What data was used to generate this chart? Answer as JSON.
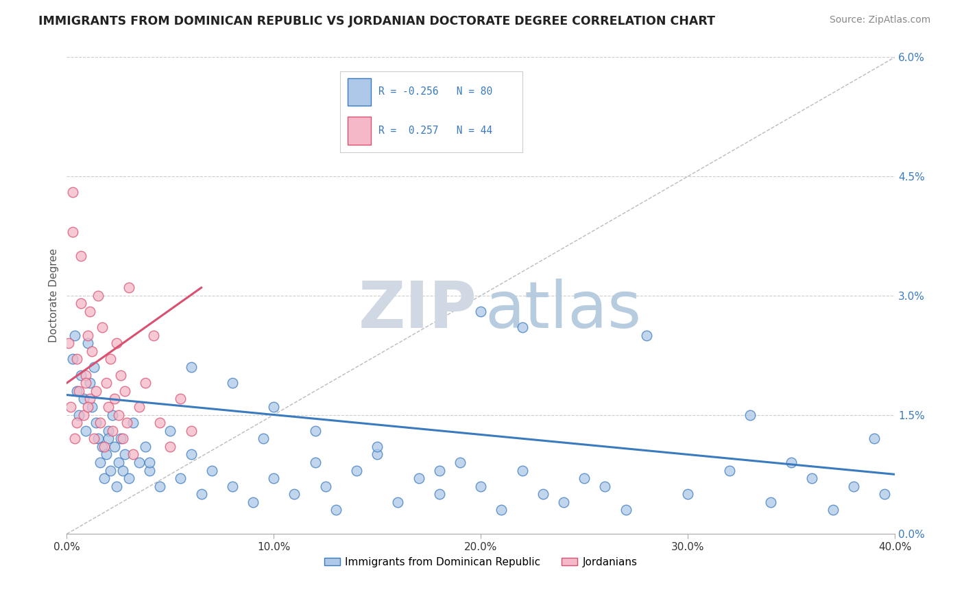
{
  "title": "IMMIGRANTS FROM DOMINICAN REPUBLIC VS JORDANIAN DOCTORATE DEGREE CORRELATION CHART",
  "source": "Source: ZipAtlas.com",
  "ylabel": "Doctorate Degree",
  "xlim": [
    0.0,
    40.0
  ],
  "ylim": [
    0.0,
    6.0
  ],
  "xticks": [
    0.0,
    10.0,
    20.0,
    30.0,
    40.0
  ],
  "yticks_right": [
    0.0,
    1.5,
    3.0,
    4.5,
    6.0
  ],
  "grid_color": "#cccccc",
  "background_color": "#ffffff",
  "blue_color": "#adc8e8",
  "pink_color": "#f4b8c8",
  "blue_line_color": "#3a7abf",
  "pink_line_color": "#d95070",
  "blue_scatter_x": [
    0.3,
    0.4,
    0.5,
    0.6,
    0.7,
    0.8,
    0.9,
    1.0,
    1.1,
    1.2,
    1.3,
    1.4,
    1.5,
    1.6,
    1.7,
    1.8,
    1.9,
    2.0,
    2.1,
    2.2,
    2.3,
    2.4,
    2.5,
    2.6,
    2.7,
    2.8,
    3.0,
    3.2,
    3.5,
    3.8,
    4.0,
    4.5,
    5.0,
    5.5,
    6.0,
    6.5,
    7.0,
    8.0,
    9.0,
    9.5,
    10.0,
    11.0,
    12.0,
    12.5,
    13.0,
    14.0,
    15.0,
    16.0,
    17.0,
    18.0,
    19.0,
    20.0,
    21.0,
    22.0,
    23.0,
    24.0,
    25.0,
    26.0,
    27.0,
    28.0,
    30.0,
    32.0,
    33.0,
    34.0,
    35.0,
    36.0,
    37.0,
    38.0,
    39.0,
    39.5,
    20.0,
    22.0,
    10.0,
    15.0,
    18.0,
    12.0,
    8.0,
    6.0,
    4.0,
    2.0
  ],
  "blue_scatter_y": [
    2.2,
    2.5,
    1.8,
    1.5,
    2.0,
    1.7,
    1.3,
    2.4,
    1.9,
    1.6,
    2.1,
    1.4,
    1.2,
    0.9,
    1.1,
    0.7,
    1.0,
    1.3,
    0.8,
    1.5,
    1.1,
    0.6,
    0.9,
    1.2,
    0.8,
    1.0,
    0.7,
    1.4,
    0.9,
    1.1,
    0.8,
    0.6,
    1.3,
    0.7,
    1.0,
    0.5,
    0.8,
    0.6,
    0.4,
    1.2,
    0.7,
    0.5,
    0.9,
    0.6,
    0.3,
    0.8,
    1.0,
    0.4,
    0.7,
    0.5,
    0.9,
    0.6,
    0.3,
    0.8,
    0.5,
    0.4,
    0.7,
    0.6,
    0.3,
    2.5,
    0.5,
    0.8,
    1.5,
    0.4,
    0.9,
    0.7,
    0.3,
    0.6,
    1.2,
    0.5,
    2.8,
    2.6,
    1.6,
    1.1,
    0.8,
    1.3,
    1.9,
    2.1,
    0.9,
    1.2
  ],
  "pink_scatter_x": [
    0.1,
    0.2,
    0.3,
    0.4,
    0.5,
    0.6,
    0.7,
    0.8,
    0.9,
    1.0,
    1.1,
    1.2,
    1.3,
    1.5,
    1.6,
    1.7,
    1.8,
    2.0,
    2.1,
    2.2,
    2.4,
    2.5,
    2.7,
    2.8,
    3.0,
    3.2,
    3.5,
    3.8,
    4.2,
    4.5,
    5.0,
    5.5,
    6.0,
    0.3,
    0.5,
    0.7,
    0.9,
    1.1,
    1.4,
    1.9,
    2.3,
    2.6,
    2.9,
    1.0
  ],
  "pink_scatter_y": [
    2.4,
    1.6,
    4.3,
    1.2,
    2.2,
    1.8,
    2.9,
    1.5,
    2.0,
    2.5,
    1.7,
    2.3,
    1.2,
    3.0,
    1.4,
    2.6,
    1.1,
    1.6,
    2.2,
    1.3,
    2.4,
    1.5,
    1.2,
    1.8,
    3.1,
    1.0,
    1.6,
    1.9,
    2.5,
    1.4,
    1.1,
    1.7,
    1.3,
    3.8,
    1.4,
    3.5,
    1.9,
    2.8,
    1.8,
    1.9,
    1.7,
    2.0,
    1.4,
    1.6
  ],
  "blue_trend_x0": 0.0,
  "blue_trend_x1": 40.0,
  "blue_trend_y0": 1.75,
  "blue_trend_y1": 0.75,
  "pink_trend_x0": 0.0,
  "pink_trend_x1": 6.5,
  "pink_trend_y0": 1.9,
  "pink_trend_y1": 3.1
}
